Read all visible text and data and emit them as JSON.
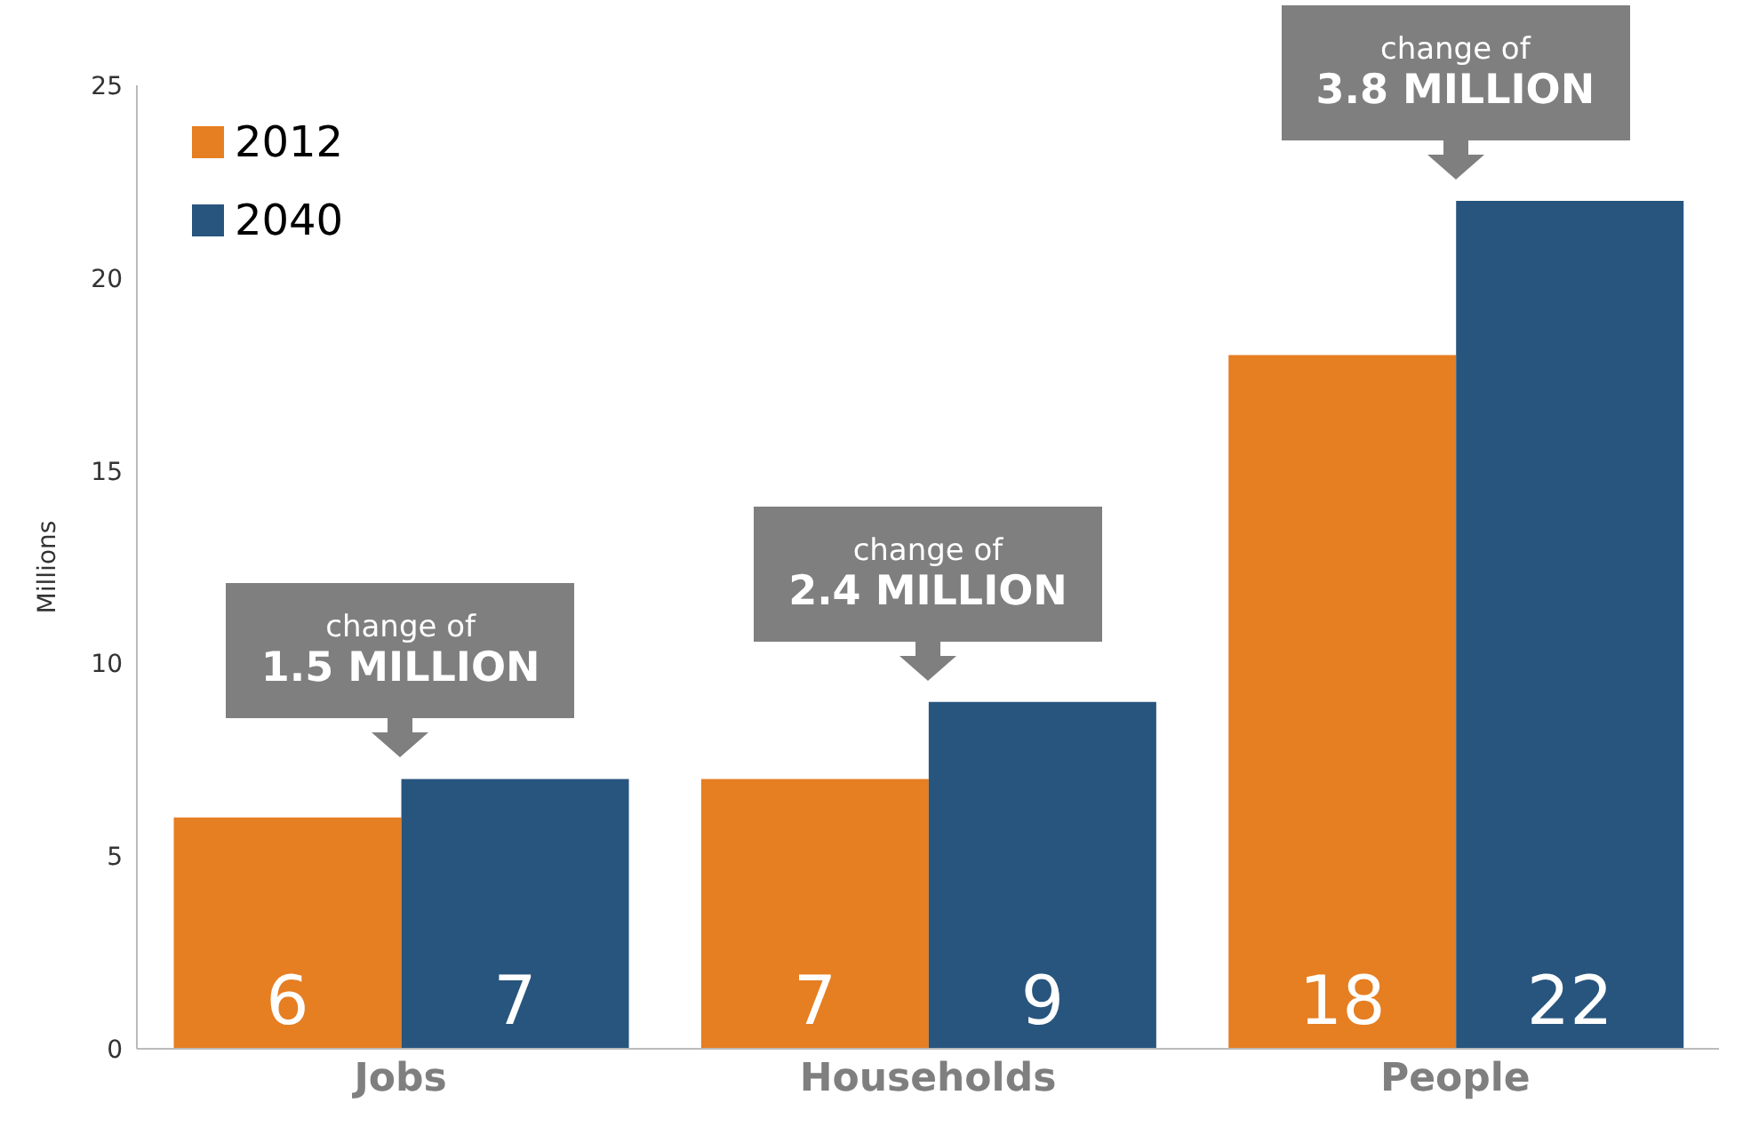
{
  "chart_data": {
    "type": "bar",
    "ylabel": "Millions",
    "categories": [
      "Jobs",
      "Households",
      "People"
    ],
    "series": [
      {
        "name": "2012",
        "color": "#e67e22",
        "values": [
          6,
          7,
          18
        ]
      },
      {
        "name": "2040",
        "color": "#27557e",
        "values": [
          7,
          9,
          22
        ]
      }
    ],
    "data_labels": true,
    "ylim": [
      0,
      25
    ],
    "yticks": [
      0,
      5,
      10,
      15,
      20,
      25
    ],
    "grid": false,
    "legend": "top left",
    "annotations": [
      "change of\n1.5 MILLION",
      "change of\n2.4 MILLION",
      "change of\n3.8 MILLION"
    ]
  }
}
